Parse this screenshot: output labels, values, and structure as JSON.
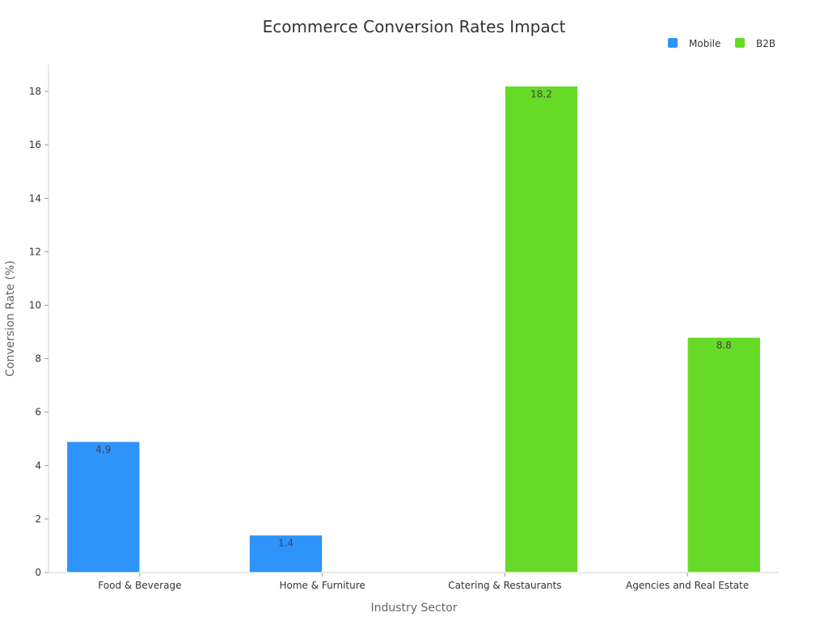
{
  "chart_data": {
    "type": "bar",
    "title": "Ecommerce Conversion Rates Impact",
    "xlabel": "Industry Sector",
    "ylabel": "Conversion Rate (%)",
    "categories": [
      "Food & Beverage",
      "Home & Furniture",
      "Catering & Restaurants",
      "Agencies and Real Estate"
    ],
    "series": [
      {
        "name": "Mobile",
        "color": "#2e93fa",
        "values": [
          4.9,
          1.4,
          null,
          null
        ]
      },
      {
        "name": "B2B",
        "color": "#66da26",
        "values": [
          null,
          null,
          18.2,
          8.8
        ]
      }
    ],
    "ylim": [
      0,
      19
    ],
    "yticks": [
      0,
      2,
      4,
      6,
      8,
      10,
      12,
      14,
      16,
      18
    ],
    "grid": false,
    "legend_position": "top-right",
    "show_data_labels": true
  }
}
